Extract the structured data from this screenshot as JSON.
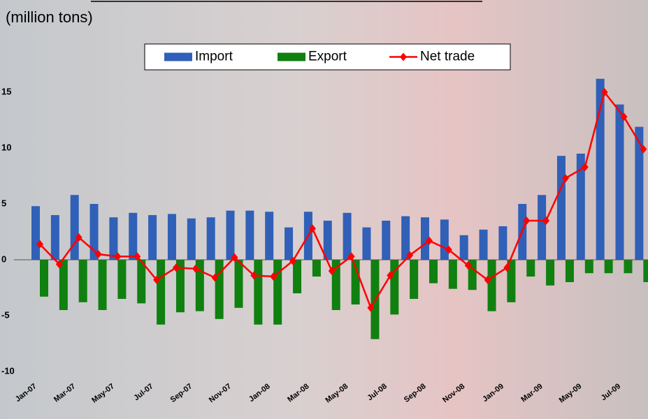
{
  "chart_data": {
    "type": "bar_line",
    "y_label": "(million tons)",
    "categories": [
      "Jan-07",
      null,
      "Mar-07",
      null,
      "May-07",
      null,
      "Jul-07",
      null,
      "Sep-07",
      null,
      "Nov-07",
      null,
      "Jan-08",
      null,
      "Mar-08",
      null,
      "May-08",
      null,
      "Jul-08",
      null,
      "Sep-08",
      null,
      "Nov-08",
      null,
      "Jan-09",
      null,
      "Mar-09",
      null,
      "May-09",
      null,
      "Jul-09",
      null
    ],
    "series": [
      {
        "name": "Import",
        "type": "bar",
        "color": "#3060b8",
        "values": [
          4.8,
          4.0,
          5.8,
          5.0,
          3.8,
          4.2,
          4.0,
          4.1,
          3.7,
          3.8,
          4.4,
          4.4,
          4.3,
          2.9,
          4.3,
          3.5,
          4.2,
          2.9,
          3.5,
          3.9,
          3.8,
          3.6,
          2.2,
          2.7,
          3.0,
          5.0,
          5.8,
          9.3,
          9.5,
          16.2,
          13.9,
          11.9
        ]
      },
      {
        "name": "Export",
        "type": "bar",
        "color": "#108010",
        "values": [
          -3.3,
          -4.5,
          -3.8,
          -4.5,
          -3.5,
          -3.9,
          -5.8,
          -4.7,
          -4.6,
          -5.3,
          -4.3,
          -5.8,
          -5.8,
          -3.0,
          -1.5,
          -4.5,
          -4.0,
          -7.1,
          -4.9,
          -3.5,
          -2.1,
          -2.6,
          -2.7,
          -4.6,
          -3.8,
          -1.5,
          -2.3,
          -2.0,
          -1.2,
          -1.2,
          -1.2,
          -2.0
        ]
      },
      {
        "name": "Net trade",
        "type": "line",
        "color": "#ff0000",
        "values": [
          1.4,
          -0.4,
          2.0,
          0.5,
          0.3,
          0.3,
          -1.8,
          -0.7,
          -0.8,
          -1.6,
          0.2,
          -1.4,
          -1.5,
          -0.1,
          2.8,
          -1.0,
          0.3,
          -4.3,
          -1.4,
          0.4,
          1.7,
          0.9,
          -0.5,
          -1.8,
          -0.7,
          3.5,
          3.5,
          7.3,
          8.3,
          15.0,
          12.8,
          9.9
        ]
      }
    ],
    "ylim": [
      -10,
      23
    ],
    "yticks": [
      -10,
      -5,
      0,
      5,
      10,
      15
    ],
    "grid": false,
    "legend": "top"
  }
}
